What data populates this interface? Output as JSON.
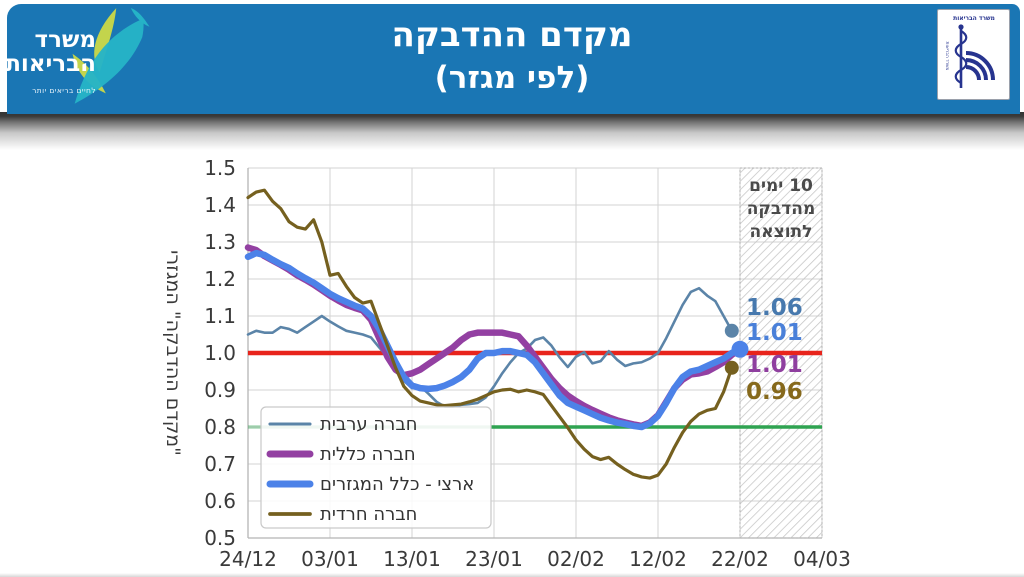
{
  "header": {
    "title_line1": "מקדם ההדבקה",
    "title_line2": "(לפי מגזר)",
    "ministry_name_line1": "משרד",
    "ministry_name_line2": "הבריאות",
    "ministry_tagline": "לחיים בריאים יותר"
  },
  "right_logo": {
    "caption": "משרד הבריאות"
  },
  "colors": {
    "header_blue": "#1a76b4",
    "logo_teal": "#25b3c7",
    "logo_lime": "#c3d44c",
    "emblem_blue": "#27348f",
    "red_reference": "#e8241c",
    "green_reference": "#2fa351",
    "gridline": "#d3d3d3",
    "axis_line": "#b5b5b5",
    "axis_text": "#3a3a3a",
    "hatch_line": "#c4c4c4",
    "hatch_border": "#b0b0b0",
    "hatch_text": "#4a4a4a",
    "legend_border": "#c9c9c9",
    "legend_text": "#333333"
  },
  "chart_data": {
    "type": "line",
    "title": "מקדם ההדבקה (לפי מגזר)",
    "ylabel": "\"מקדם ההדבקה\" המגזרי",
    "ylim": [
      0.5,
      1.5
    ],
    "grid": true,
    "x_days_total": 70,
    "x_tick_labels": [
      "24/12",
      "03/01",
      "13/01",
      "23/01",
      "02/02",
      "12/02",
      "22/02",
      "04/03"
    ],
    "y_tick_labels": [
      "0.5",
      "0.6",
      "0.7",
      "0.8",
      "0.9",
      "1.0",
      "1.1",
      "1.2",
      "1.3",
      "1.4",
      "1.5"
    ],
    "reference_lines": [
      {
        "value": 1.0,
        "color": "#e8241c",
        "width": 4.5
      },
      {
        "value": 0.8,
        "color": "#2fa351",
        "width": 3.5
      }
    ],
    "shaded_region": {
      "from_day": 60,
      "to_day": 70,
      "label_lines": [
        "10 ימים",
        "מהדבקה",
        "לתוצאה"
      ]
    },
    "legend": {
      "position": "lower-left"
    },
    "series": [
      {
        "key": "arab",
        "label": "חברה ערבית",
        "color": "#5b84a8",
        "label_color": "#4779ae",
        "width": 2.6,
        "dot_r": 7,
        "end_label": "1.06",
        "end_value": 1.06,
        "values": [
          1.05,
          1.06,
          1.055,
          1.055,
          1.07,
          1.065,
          1.055,
          1.07,
          1.085,
          1.1,
          1.085,
          1.072,
          1.06,
          1.055,
          1.05,
          1.042,
          1.015,
          0.99,
          0.955,
          0.925,
          0.905,
          0.91,
          0.89,
          0.868,
          0.855,
          0.855,
          0.86,
          0.862,
          0.865,
          0.88,
          0.91,
          0.945,
          0.975,
          1.0,
          1.012,
          1.035,
          1.042,
          1.02,
          0.988,
          0.962,
          0.99,
          1.002,
          0.972,
          0.978,
          1.005,
          0.982,
          0.965,
          0.972,
          0.975,
          0.985,
          1.0,
          1.04,
          1.085,
          1.13,
          1.165,
          1.175,
          1.155,
          1.14,
          1.1,
          1.06
        ]
      },
      {
        "key": "general",
        "label": "חברה כללית",
        "color": "#9340a2",
        "label_color": "#8f3f9f",
        "width": 6.5,
        "dot_r": 7,
        "end_label": "1.01",
        "end_value": 1.01,
        "values": [
          1.285,
          1.278,
          1.262,
          1.25,
          1.238,
          1.225,
          1.21,
          1.198,
          1.185,
          1.17,
          1.155,
          1.142,
          1.13,
          1.122,
          1.115,
          1.09,
          1.04,
          0.99,
          0.955,
          0.94,
          0.945,
          0.955,
          0.97,
          0.985,
          1.0,
          1.015,
          1.035,
          1.05,
          1.055,
          1.055,
          1.055,
          1.055,
          1.05,
          1.045,
          1.02,
          0.99,
          0.96,
          0.93,
          0.905,
          0.885,
          0.87,
          0.857,
          0.846,
          0.836,
          0.826,
          0.818,
          0.812,
          0.807,
          0.803,
          0.812,
          0.832,
          0.868,
          0.905,
          0.928,
          0.942,
          0.945,
          0.95,
          0.962,
          0.975,
          0.995,
          1.01
        ]
      },
      {
        "key": "national",
        "label": "ארצי - כלל המגזרים",
        "color": "#4c82e8",
        "label_color": "#4a80d9",
        "width": 6.5,
        "dot_r": 8.5,
        "end_label": "1.01",
        "end_value": 1.01,
        "values": [
          1.26,
          1.27,
          1.265,
          1.252,
          1.24,
          1.23,
          1.215,
          1.202,
          1.19,
          1.175,
          1.16,
          1.148,
          1.138,
          1.128,
          1.12,
          1.1,
          1.065,
          1.02,
          0.975,
          0.935,
          0.912,
          0.905,
          0.903,
          0.905,
          0.912,
          0.922,
          0.935,
          0.955,
          0.985,
          1.0,
          1.0,
          1.005,
          1.005,
          1.0,
          0.995,
          0.975,
          0.945,
          0.915,
          0.885,
          0.865,
          0.855,
          0.845,
          0.835,
          0.825,
          0.818,
          0.812,
          0.808,
          0.803,
          0.8,
          0.81,
          0.83,
          0.865,
          0.905,
          0.935,
          0.95,
          0.955,
          0.965,
          0.975,
          0.985,
          1.0,
          1.01
        ]
      },
      {
        "key": "haredi",
        "label": "חברה חרדית",
        "color": "#75601f",
        "label_color": "#86691c",
        "width": 3.2,
        "dot_r": 7,
        "end_label": "0.96",
        "end_value": 0.96,
        "values": [
          1.42,
          1.435,
          1.44,
          1.41,
          1.39,
          1.355,
          1.34,
          1.335,
          1.36,
          1.3,
          1.21,
          1.215,
          1.18,
          1.15,
          1.135,
          1.14,
          1.08,
          1.02,
          0.96,
          0.91,
          0.885,
          0.87,
          0.865,
          0.86,
          0.858,
          0.86,
          0.862,
          0.868,
          0.875,
          0.885,
          0.895,
          0.9,
          0.902,
          0.895,
          0.9,
          0.895,
          0.888,
          0.858,
          0.828,
          0.798,
          0.765,
          0.74,
          0.72,
          0.712,
          0.718,
          0.7,
          0.685,
          0.672,
          0.665,
          0.662,
          0.67,
          0.7,
          0.745,
          0.785,
          0.815,
          0.835,
          0.845,
          0.85,
          0.895,
          0.96
        ]
      }
    ]
  }
}
